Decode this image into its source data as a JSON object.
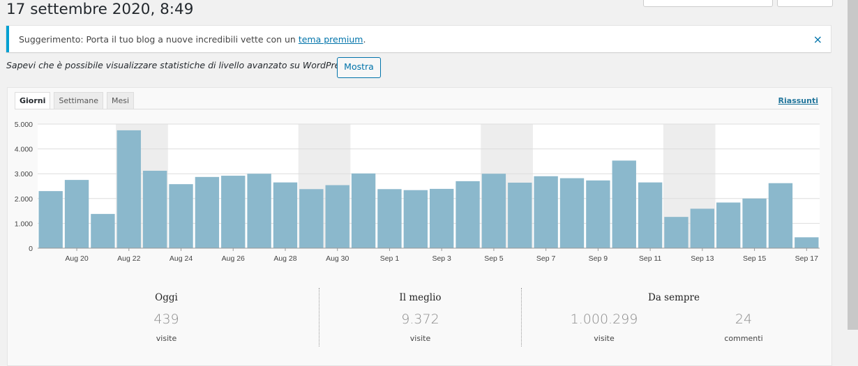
{
  "page": {
    "title": "17 settembre 2020, 8:49"
  },
  "notice": {
    "prefix": "Suggerimento: Porta il tuo blog a nuove incredibili vette con un ",
    "link": "tema premium",
    "suffix": ".",
    "dismiss": "×"
  },
  "promo": {
    "text": "Sapevi che è possibile visualizzare statistiche di livello avanzato su WordPress.com?",
    "button": "Mostra"
  },
  "tabs": [
    "Giorni",
    "Settimane",
    "Mesi"
  ],
  "summaries_link": "Riassunti",
  "chart_data": {
    "type": "bar",
    "categories": [
      "Aug 19",
      "Aug 20",
      "Aug 21",
      "Aug 22",
      "Aug 23",
      "Aug 24",
      "Aug 25",
      "Aug 26",
      "Aug 27",
      "Aug 28",
      "Aug 29",
      "Aug 30",
      "Aug 31",
      "Sep 1",
      "Sep 2",
      "Sep 3",
      "Sep 4",
      "Sep 5",
      "Sep 6",
      "Sep 7",
      "Sep 8",
      "Sep 9",
      "Sep 10",
      "Sep 11",
      "Sep 12",
      "Sep 13",
      "Sep 14",
      "Sep 15",
      "Sep 16",
      "Sep 17"
    ],
    "tick_labels": [
      "Aug 20",
      "Aug 22",
      "Aug 24",
      "Aug 26",
      "Aug 28",
      "Aug 30",
      "Sep 1",
      "Sep 3",
      "Sep 5",
      "Sep 7",
      "Sep 9",
      "Sep 11",
      "Sep 13",
      "Sep 15",
      "Sep 17"
    ],
    "values": [
      2300,
      2750,
      1380,
      4750,
      3120,
      2580,
      2870,
      2920,
      3000,
      2650,
      2380,
      2540,
      3010,
      2380,
      2340,
      2390,
      2700,
      3000,
      2640,
      2900,
      2820,
      2730,
      3530,
      2650,
      1260,
      1590,
      1840,
      2000,
      2620,
      439
    ],
    "y_ticks": [
      "0",
      "1.000",
      "2.000",
      "3.000",
      "4.000",
      "5.000"
    ],
    "ylim": [
      0,
      5000
    ],
    "weekend_pairs": [
      [
        3,
        4
      ],
      [
        10,
        11
      ],
      [
        17,
        18
      ],
      [
        24,
        25
      ]
    ],
    "grid": true,
    "colors": {
      "bar": "#8bb8cc",
      "weekend_band": "#ededed",
      "plot_bg": "#ffffff",
      "grid": "#dddddd"
    }
  },
  "stats": {
    "today": {
      "label": "Oggi",
      "value": "439",
      "unit": "visite"
    },
    "best": {
      "label": "Il meglio",
      "value": "9.372",
      "unit": "visite"
    },
    "all_time": {
      "label": "Da sempre",
      "views_value": "1.000.299",
      "views_unit": "visite",
      "comments_value": "24",
      "comments_unit": "commenti"
    }
  }
}
